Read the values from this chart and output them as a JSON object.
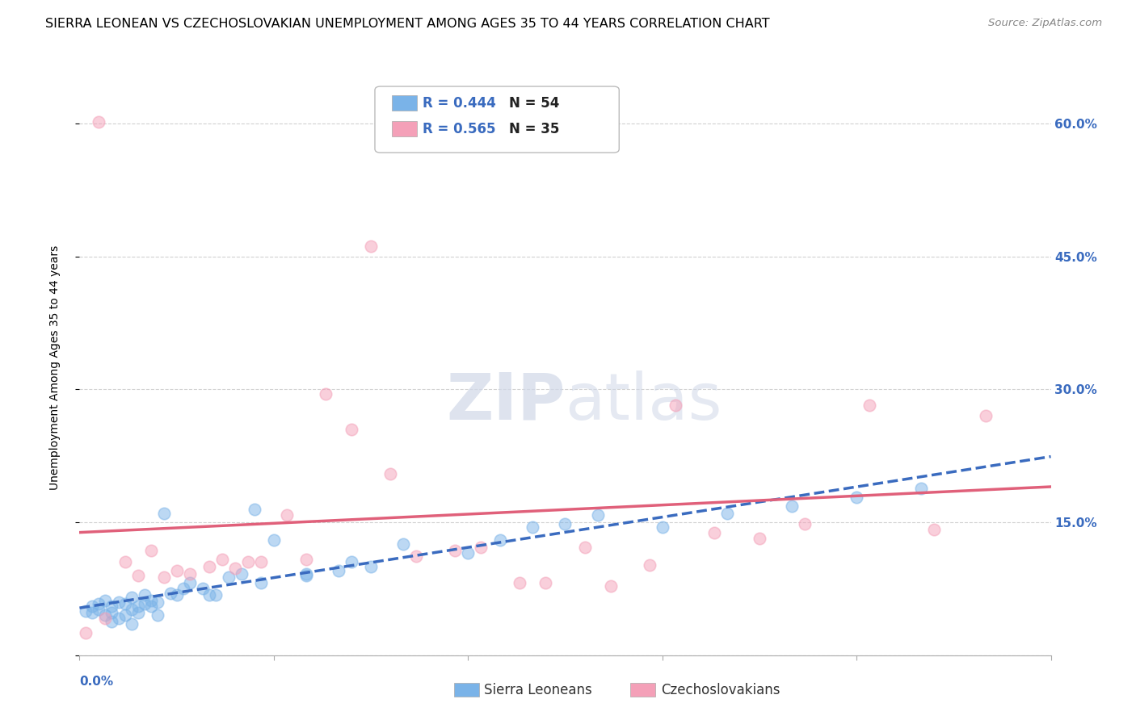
{
  "title": "SIERRA LEONEAN VS CZECHOSLOVAKIAN UNEMPLOYMENT AMONG AGES 35 TO 44 YEARS CORRELATION CHART",
  "source": "Source: ZipAtlas.com",
  "ylabel": "Unemployment Among Ages 35 to 44 years",
  "xlim": [
    0.0,
    0.15
  ],
  "ylim": [
    0.0,
    0.65
  ],
  "yticks": [
    0.0,
    0.15,
    0.3,
    0.45,
    0.6
  ],
  "ytick_labels": [
    "",
    "15.0%",
    "30.0%",
    "45.0%",
    "60.0%"
  ],
  "xticks": [
    0.0,
    0.03,
    0.06,
    0.09,
    0.12,
    0.15
  ],
  "grid_color": "#cccccc",
  "background_color": "#ffffff",
  "watermark_zip": "ZIP",
  "watermark_atlas": "atlas",
  "legend_r1": "R = 0.444",
  "legend_n1": "N = 54",
  "legend_r2": "R = 0.565",
  "legend_n2": "N = 35",
  "legend_color1": "#7ab3e8",
  "legend_color2": "#f4a0b8",
  "sl_color": "#7ab3e8",
  "cs_color": "#f4a0b8",
  "sl_line_color": "#3a6bbf",
  "cs_line_color": "#e0607a",
  "sierra_leonean_x": [
    0.001,
    0.002,
    0.002,
    0.003,
    0.003,
    0.004,
    0.004,
    0.005,
    0.005,
    0.006,
    0.006,
    0.007,
    0.007,
    0.008,
    0.008,
    0.009,
    0.009,
    0.01,
    0.01,
    0.011,
    0.011,
    0.012,
    0.013,
    0.014,
    0.015,
    0.016,
    0.017,
    0.019,
    0.021,
    0.023,
    0.025,
    0.027,
    0.03,
    0.035,
    0.04,
    0.045,
    0.05,
    0.06,
    0.065,
    0.07,
    0.075,
    0.08,
    0.09,
    0.1,
    0.11,
    0.12,
    0.13,
    0.005,
    0.008,
    0.012,
    0.02,
    0.028,
    0.035,
    0.042
  ],
  "sierra_leonean_y": [
    0.05,
    0.048,
    0.055,
    0.052,
    0.058,
    0.045,
    0.062,
    0.048,
    0.055,
    0.042,
    0.06,
    0.045,
    0.058,
    0.052,
    0.065,
    0.048,
    0.055,
    0.058,
    0.068,
    0.055,
    0.062,
    0.06,
    0.16,
    0.07,
    0.068,
    0.075,
    0.082,
    0.075,
    0.068,
    0.088,
    0.092,
    0.165,
    0.13,
    0.09,
    0.095,
    0.1,
    0.125,
    0.115,
    0.13,
    0.145,
    0.148,
    0.158,
    0.145,
    0.16,
    0.168,
    0.178,
    0.188,
    0.038,
    0.035,
    0.045,
    0.068,
    0.082,
    0.092,
    0.105
  ],
  "czechoslovakian_x": [
    0.001,
    0.004,
    0.007,
    0.009,
    0.011,
    0.013,
    0.015,
    0.017,
    0.02,
    0.022,
    0.024,
    0.026,
    0.028,
    0.032,
    0.035,
    0.038,
    0.042,
    0.045,
    0.048,
    0.052,
    0.058,
    0.062,
    0.068,
    0.072,
    0.078,
    0.082,
    0.088,
    0.092,
    0.098,
    0.105,
    0.112,
    0.122,
    0.132,
    0.14,
    0.003
  ],
  "czechoslovakian_y": [
    0.025,
    0.042,
    0.105,
    0.09,
    0.118,
    0.088,
    0.095,
    0.092,
    0.1,
    0.108,
    0.098,
    0.105,
    0.105,
    0.158,
    0.108,
    0.295,
    0.255,
    0.462,
    0.205,
    0.112,
    0.118,
    0.122,
    0.082,
    0.082,
    0.122,
    0.078,
    0.102,
    0.282,
    0.138,
    0.132,
    0.148,
    0.282,
    0.142,
    0.27,
    0.602
  ],
  "title_fontsize": 11.5,
  "source_fontsize": 9.5,
  "axis_label_fontsize": 10,
  "tick_fontsize": 11,
  "legend_fontsize": 12
}
